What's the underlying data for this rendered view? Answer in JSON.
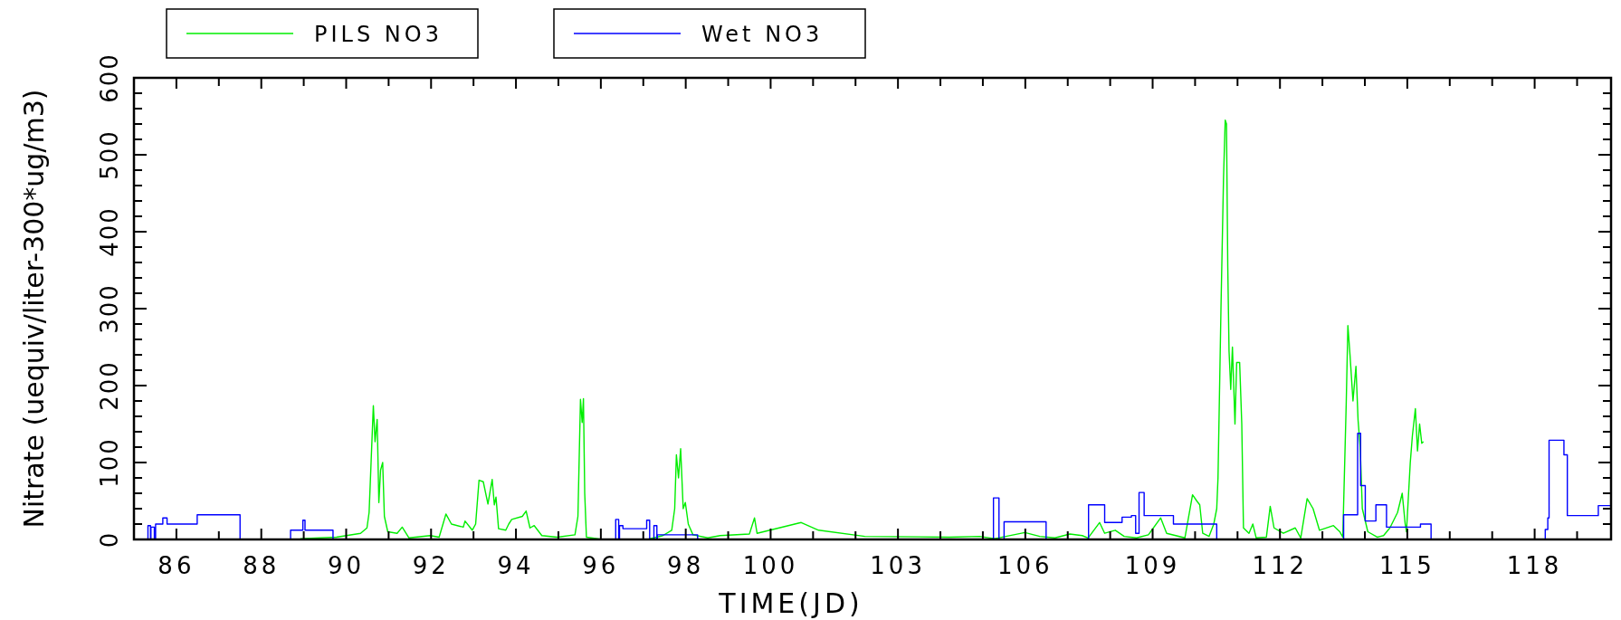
{
  "chart_data": {
    "type": "line",
    "xlabel": "TIME(JD)",
    "ylabel": "Nitrate (uequiv/liter-300*ug/m3)",
    "legend": "top",
    "grid": false,
    "xlim": [
      85,
      119.8
    ],
    "ylim": [
      0,
      600
    ],
    "xticks": [
      {
        "value": 85,
        "label": null
      },
      86,
      {
        "value": 87,
        "label": null
      },
      88,
      {
        "value": 89,
        "label": null
      },
      90,
      {
        "value": 91,
        "label": null
      },
      92,
      {
        "value": 93,
        "label": null
      },
      94,
      {
        "value": 95,
        "label": null
      },
      96,
      {
        "value": 97,
        "label": null
      },
      98,
      {
        "value": 99,
        "label": null
      },
      100,
      {
        "value": 101,
        "label": null
      },
      {
        "value": 102,
        "label": null
      },
      103,
      {
        "value": 104,
        "label": null
      },
      {
        "value": 105,
        "label": null
      },
      106,
      {
        "value": 107,
        "label": null
      },
      {
        "value": 108,
        "label": null
      },
      109,
      {
        "value": 110,
        "label": null
      },
      {
        "value": 111,
        "label": null
      },
      112,
      {
        "value": 113,
        "label": null
      },
      {
        "value": 114,
        "label": null
      },
      115,
      {
        "value": 116,
        "label": null
      },
      {
        "value": 117,
        "label": null
      },
      118,
      {
        "value": 119,
        "label": null
      }
    ],
    "yticks": [
      0,
      {
        "value": 20,
        "label": null
      },
      {
        "value": 40,
        "label": null
      },
      {
        "value": 60,
        "label": null
      },
      {
        "value": 80,
        "label": null
      },
      100,
      {
        "value": 120,
        "label": null
      },
      {
        "value": 140,
        "label": null
      },
      {
        "value": 160,
        "label": null
      },
      {
        "value": 180,
        "label": null
      },
      200,
      {
        "value": 220,
        "label": null
      },
      {
        "value": 240,
        "label": null
      },
      {
        "value": 260,
        "label": null
      },
      {
        "value": 280,
        "label": null
      },
      300,
      {
        "value": 320,
        "label": null
      },
      {
        "value": 340,
        "label": null
      },
      {
        "value": 360,
        "label": null
      },
      {
        "value": 380,
        "label": null
      },
      400,
      {
        "value": 420,
        "label": null
      },
      {
        "value": 440,
        "label": null
      },
      {
        "value": 460,
        "label": null
      },
      {
        "value": 480,
        "label": null
      },
      500,
      {
        "value": 520,
        "label": null
      },
      {
        "value": 540,
        "label": null
      },
      {
        "value": 560,
        "label": null
      },
      {
        "value": 580,
        "label": null
      },
      600
    ],
    "series": [
      {
        "name": "PILS NO3",
        "color": "#00ee00",
        "x": [
          88.92,
          89.77,
          90.34,
          90.49,
          90.54,
          90.64,
          90.68,
          90.73,
          90.77,
          90.81,
          90.86,
          90.9,
          90.98,
          91.2,
          91.32,
          91.48,
          91.98,
          92.19,
          92.35,
          92.48,
          92.76,
          92.8,
          92.97,
          93.05,
          93.13,
          93.23,
          93.34,
          93.44,
          93.49,
          93.53,
          93.59,
          93.76,
          93.83,
          93.9,
          94.15,
          94.24,
          94.33,
          94.43,
          94.61,
          94.97,
          95.39,
          95.46,
          95.52,
          95.56,
          95.59,
          95.62,
          95.66,
          96.03,
          97.1,
          97.46,
          97.67,
          97.74,
          97.78,
          97.83,
          97.88,
          97.94,
          97.99,
          98.06,
          98.17,
          98.52,
          98.81,
          99.5,
          99.62,
          99.68,
          100.72,
          101.13,
          102.22,
          104.21,
          104.92,
          105.28,
          105.99,
          106.34,
          106.7,
          107.05,
          107.34,
          107.48,
          107.75,
          107.87,
          108.12,
          108.33,
          108.62,
          108.9,
          109.19,
          109.33,
          109.76,
          109.94,
          110.04,
          110.11,
          110.18,
          110.33,
          110.44,
          110.51,
          110.54,
          110.61,
          110.67,
          110.71,
          110.74,
          110.77,
          110.8,
          110.84,
          110.88,
          110.94,
          110.98,
          111.05,
          111.1,
          111.14,
          111.27,
          111.36,
          111.44,
          111.68,
          111.77,
          111.86,
          112.08,
          112.36,
          112.49,
          112.64,
          112.78,
          112.93,
          113.26,
          113.41,
          113.48,
          113.56,
          113.6,
          113.65,
          113.72,
          113.79,
          113.84,
          113.89,
          113.94,
          114.07,
          114.29,
          114.44,
          114.59,
          114.77,
          114.88,
          114.95,
          114.98,
          115.07,
          115.12,
          115.19,
          115.24,
          115.29,
          115.34,
          115.38
        ],
        "values": [
          1,
          3,
          8,
          15,
          35,
          174,
          127,
          156,
          48,
          90,
          100,
          30,
          10,
          8,
          16,
          2,
          5,
          3,
          33,
          20,
          16,
          24,
          12,
          20,
          77,
          75,
          46,
          78,
          45,
          55,
          14,
          12,
          20,
          26,
          30,
          37,
          15,
          18,
          5,
          3,
          6,
          30,
          182,
          152,
          183,
          60,
          3,
          0,
          0,
          5,
          12,
          40,
          110,
          80,
          118,
          40,
          48,
          20,
          6,
          2,
          5,
          7,
          28,
          8,
          22,
          12,
          4,
          3,
          4,
          1,
          9,
          4,
          2,
          7,
          5,
          2,
          22,
          8,
          12,
          4,
          2,
          6,
          28,
          8,
          2,
          58,
          50,
          45,
          8,
          4,
          20,
          40,
          80,
          300,
          470,
          545,
          540,
          355,
          245,
          195,
          250,
          150,
          230,
          230,
          150,
          15,
          8,
          20,
          2,
          3,
          43,
          15,
          8,
          15,
          2,
          53,
          40,
          12,
          18,
          10,
          3,
          175,
          278,
          240,
          180,
          225,
          155,
          120,
          40,
          10,
          3,
          5,
          15,
          35,
          60,
          20,
          10,
          100,
          135,
          170,
          115,
          150,
          125,
          127
        ]
      },
      {
        "name": "Wet NO3",
        "color": "#0000ff",
        "x": [
          85.33,
          85.33,
          85.39,
          85.39,
          85.4,
          85.4,
          85.48,
          85.48,
          85.51,
          85.51,
          85.68,
          85.68,
          85.78,
          85.78,
          86.49,
          86.49,
          87.5,
          87.5,
          88.69,
          88.69,
          88.98,
          88.98,
          89.03,
          89.03,
          89.69,
          89.69,
          96.35,
          96.35,
          96.42,
          96.42,
          96.44,
          96.44,
          96.52,
          96.52,
          97.08,
          97.08,
          97.15,
          97.15,
          97.25,
          97.25,
          97.32,
          97.32,
          97.33,
          97.33,
          98.28,
          98.28,
          105.25,
          105.25,
          105.38,
          105.38,
          105.5,
          105.5,
          106.49,
          106.49,
          107.49,
          107.49,
          107.87,
          107.87,
          108.28,
          108.28,
          108.5,
          108.5,
          108.6,
          108.6,
          108.68,
          108.68,
          108.8,
          108.8,
          109.49,
          109.49,
          110.51,
          110.51,
          113.5,
          113.5,
          113.83,
          113.83,
          113.9,
          113.9,
          114.01,
          114.01,
          114.26,
          114.26,
          114.51,
          114.51,
          115.31,
          115.31,
          115.56,
          115.56,
          118.25,
          118.25,
          118.31,
          118.31,
          118.34,
          118.34,
          118.69,
          118.69,
          118.77,
          118.77,
          119.5,
          119.5,
          119.8
        ],
        "values": [
          0,
          18,
          18,
          0,
          0,
          16,
          16,
          0,
          0,
          20,
          20,
          28,
          28,
          20,
          20,
          32,
          32,
          0,
          0,
          12,
          12,
          25,
          25,
          12,
          12,
          0,
          0,
          26,
          26,
          0,
          0,
          18,
          18,
          14,
          14,
          25,
          25,
          0,
          0,
          18,
          18,
          0,
          0,
          6,
          6,
          0,
          0,
          54,
          54,
          0,
          0,
          23,
          23,
          0,
          0,
          45,
          45,
          22,
          22,
          29,
          29,
          31,
          31,
          8,
          8,
          61,
          61,
          31,
          31,
          20,
          20,
          0,
          0,
          32,
          32,
          138,
          138,
          70,
          70,
          24,
          24,
          45,
          45,
          16,
          16,
          20,
          20,
          0,
          0,
          13,
          13,
          28,
          28,
          129,
          129,
          110,
          110,
          31,
          31,
          44,
          44
        ]
      }
    ]
  }
}
